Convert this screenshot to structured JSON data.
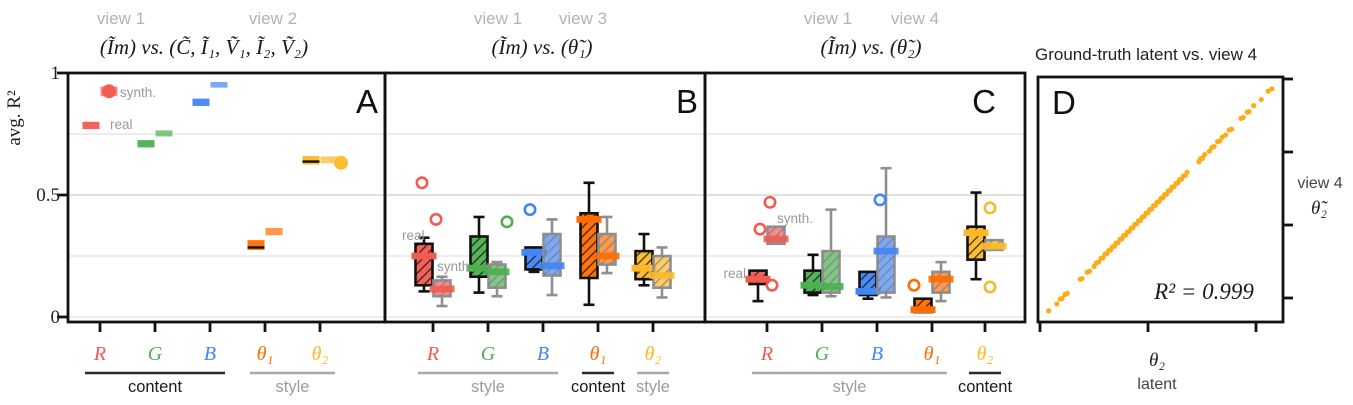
{
  "axis": {
    "label": "avg. R²",
    "ticks": [
      "1",
      "0.5",
      "0"
    ]
  },
  "chart_data": [
    {
      "type": "box",
      "panel": "A",
      "tag": "A",
      "view_tags": [
        "view 1",
        "view 2"
      ],
      "title": "(Ĩm) vs. (C̃, Ĩ₁, Ṽ₁, Ĩ₂, Ṽ₂)",
      "legend": {
        "real": "real",
        "synth": "synth."
      },
      "box_style": "plain",
      "ylim": [
        0,
        1
      ],
      "grid": [
        0,
        0.25,
        0.5,
        0.75
      ],
      "categories": [
        {
          "label": "R",
          "color": "#f15b52"
        },
        {
          "label": "G",
          "color": "#4caf50"
        },
        {
          "label": "B",
          "color": "#4285f4"
        },
        {
          "label": "θ₁",
          "color": "#ff6d00"
        },
        {
          "label": "θ₂",
          "color": "#fbb929"
        }
      ],
      "groups": [
        {
          "label": "content",
          "from": 0,
          "to": 2,
          "dark": true
        },
        {
          "label": "style",
          "from": 3,
          "to": 4,
          "dark": false
        }
      ],
      "boxes": [
        {
          "cat": 0,
          "kind": "real",
          "lo": 0.77,
          "q1": 0.77,
          "med": 0.785,
          "q3": 0.8,
          "hi": 0.8,
          "out": [],
          "fout": []
        },
        {
          "cat": 0,
          "kind": "synth",
          "lo": 0.905,
          "q1": 0.905,
          "med": 0.925,
          "q3": 0.945,
          "hi": 0.945,
          "out": [],
          "fout": [
            [
              0.925,
              0
            ]
          ]
        },
        {
          "cat": 1,
          "kind": "real",
          "lo": 0.69,
          "q1": 0.695,
          "med": 0.71,
          "q3": 0.725,
          "hi": 0.73,
          "out": [],
          "fout": []
        },
        {
          "cat": 1,
          "kind": "synth",
          "lo": 0.735,
          "q1": 0.74,
          "med": 0.752,
          "q3": 0.765,
          "hi": 0.77,
          "out": [],
          "fout": []
        },
        {
          "cat": 2,
          "kind": "real",
          "lo": 0.86,
          "q1": 0.865,
          "med": 0.878,
          "q3": 0.895,
          "hi": 0.9,
          "out": [],
          "fout": []
        },
        {
          "cat": 2,
          "kind": "synth",
          "lo": 0.935,
          "q1": 0.94,
          "med": 0.951,
          "q3": 0.963,
          "hi": 0.965,
          "out": [],
          "fout": []
        },
        {
          "cat": 3,
          "kind": "real",
          "lo": 0.27,
          "q1": 0.275,
          "med": 0.285,
          "q3": 0.315,
          "hi": 0.32,
          "out": [],
          "fout": [],
          "med_black": true
        },
        {
          "cat": 3,
          "kind": "synth",
          "lo": 0.33,
          "q1": 0.335,
          "med": 0.35,
          "q3": 0.365,
          "hi": 0.37,
          "out": [],
          "fout": []
        },
        {
          "cat": 4,
          "kind": "real",
          "lo": 0.62,
          "q1": 0.625,
          "med": 0.637,
          "q3": 0.66,
          "hi": 0.662,
          "out": [],
          "fout": [],
          "med_black": true
        },
        {
          "cat": 4,
          "kind": "synth",
          "lo": 0.625,
          "q1": 0.63,
          "med": 0.645,
          "q3": 0.658,
          "hi": 0.66,
          "out": [],
          "fout": [
            [
              0.632,
              12
            ]
          ]
        }
      ]
    },
    {
      "type": "box",
      "panel": "B",
      "tag": "B",
      "view_tags": [
        "view 1",
        "view 3"
      ],
      "title": "(Ĩm) vs. (θ̃₁)",
      "legend": {
        "real": "real",
        "synth": "synth."
      },
      "box_style": "hatched",
      "ylim": [
        0,
        1
      ],
      "grid": [
        0,
        0.25,
        0.5,
        0.75
      ],
      "categories": [
        {
          "label": "R",
          "color": "#f15b52"
        },
        {
          "label": "G",
          "color": "#4caf50"
        },
        {
          "label": "B",
          "color": "#4285f4"
        },
        {
          "label": "θ₁",
          "color": "#ff6d00"
        },
        {
          "label": "θ₂",
          "color": "#fbb929"
        }
      ],
      "groups": [
        {
          "label": "style",
          "from": 0,
          "to": 2,
          "dark": false
        },
        {
          "label": "content",
          "from": 3,
          "to": 3,
          "dark": true
        },
        {
          "label": "style",
          "from": 4,
          "to": 4,
          "dark": false
        }
      ],
      "boxes": [
        {
          "cat": 0,
          "kind": "real",
          "lo": 0.105,
          "q1": 0.13,
          "med": 0.25,
          "q3": 0.3,
          "hi": 0.325,
          "out": [
            [
              0.55,
              -2
            ],
            [
              0.4,
              12
            ]
          ],
          "fout": []
        },
        {
          "cat": 0,
          "kind": "synth",
          "lo": 0.045,
          "q1": 0.085,
          "med": 0.115,
          "q3": 0.15,
          "hi": 0.165,
          "out": [],
          "fout": []
        },
        {
          "cat": 1,
          "kind": "real",
          "lo": 0.1,
          "q1": 0.165,
          "med": 0.2,
          "q3": 0.33,
          "hi": 0.41,
          "out": [],
          "fout": []
        },
        {
          "cat": 1,
          "kind": "synth",
          "lo": 0.085,
          "q1": 0.12,
          "med": 0.185,
          "q3": 0.215,
          "hi": 0.225,
          "out": [
            [
              0.39,
              10
            ]
          ],
          "fout": []
        },
        {
          "cat": 2,
          "kind": "real",
          "lo": 0.185,
          "q1": 0.195,
          "med": 0.265,
          "q3": 0.285,
          "hi": 0.29,
          "out": [
            [
              0.44,
              -4
            ]
          ],
          "fout": []
        },
        {
          "cat": 2,
          "kind": "synth",
          "lo": 0.09,
          "q1": 0.17,
          "med": 0.21,
          "q3": 0.34,
          "hi": 0.4,
          "out": [],
          "fout": []
        },
        {
          "cat": 3,
          "kind": "real",
          "lo": 0.05,
          "q1": 0.16,
          "med": 0.4,
          "q3": 0.425,
          "hi": 0.55,
          "out": [],
          "fout": []
        },
        {
          "cat": 3,
          "kind": "synth",
          "lo": 0.18,
          "q1": 0.215,
          "med": 0.25,
          "q3": 0.34,
          "hi": 0.41,
          "out": [],
          "fout": []
        },
        {
          "cat": 4,
          "kind": "real",
          "lo": 0.13,
          "q1": 0.155,
          "med": 0.2,
          "q3": 0.27,
          "hi": 0.34,
          "out": [],
          "fout": []
        },
        {
          "cat": 4,
          "kind": "synth",
          "lo": 0.08,
          "q1": 0.12,
          "med": 0.17,
          "q3": 0.25,
          "hi": 0.285,
          "out": [],
          "fout": []
        }
      ]
    },
    {
      "type": "box",
      "panel": "C",
      "tag": "C",
      "view_tags": [
        "view 1",
        "view 4"
      ],
      "title": "(Ĩm) vs. (θ̃₂)",
      "legend": {
        "real": "real",
        "synth": "synth."
      },
      "box_style": "hatched",
      "ylim": [
        0,
        1
      ],
      "grid": [
        0,
        0.25,
        0.5,
        0.75
      ],
      "categories": [
        {
          "label": "R",
          "color": "#f15b52"
        },
        {
          "label": "G",
          "color": "#4caf50"
        },
        {
          "label": "B",
          "color": "#4285f4"
        },
        {
          "label": "θ₁",
          "color": "#ff6d00"
        },
        {
          "label": "θ₂",
          "color": "#fbb929"
        }
      ],
      "groups": [
        {
          "label": "style",
          "from": 0,
          "to": 3,
          "dark": false
        },
        {
          "label": "content",
          "from": 4,
          "to": 4,
          "dark": true
        }
      ],
      "boxes": [
        {
          "cat": 0,
          "kind": "real",
          "lo": 0.065,
          "q1": 0.135,
          "med": 0.155,
          "q3": 0.19,
          "hi": 0.195,
          "out": [
            [
              0.13,
              14
            ]
          ],
          "fout": []
        },
        {
          "cat": 0,
          "kind": "synth",
          "lo": 0.295,
          "q1": 0.3,
          "med": 0.32,
          "q3": 0.37,
          "hi": 0.375,
          "out": [
            [
              0.47,
              -6
            ],
            [
              0.36,
              -16
            ]
          ],
          "fout": []
        },
        {
          "cat": 1,
          "kind": "real",
          "lo": 0.09,
          "q1": 0.1,
          "med": 0.13,
          "q3": 0.19,
          "hi": 0.255,
          "out": [],
          "fout": []
        },
        {
          "cat": 1,
          "kind": "synth",
          "lo": 0.085,
          "q1": 0.1,
          "med": 0.125,
          "q3": 0.27,
          "hi": 0.44,
          "out": [],
          "fout": []
        },
        {
          "cat": 2,
          "kind": "real",
          "lo": 0.075,
          "q1": 0.09,
          "med": 0.105,
          "q3": 0.185,
          "hi": 0.19,
          "out": [],
          "fout": []
        },
        {
          "cat": 2,
          "kind": "synth",
          "lo": 0.08,
          "q1": 0.1,
          "med": 0.27,
          "q3": 0.33,
          "hi": 0.61,
          "out": [
            [
              0.48,
              -6
            ]
          ],
          "fout": []
        },
        {
          "cat": 3,
          "kind": "real",
          "lo": 0.015,
          "q1": 0.02,
          "med": 0.03,
          "q3": 0.075,
          "hi": 0.08,
          "out": [
            [
              0.13,
              -9
            ]
          ],
          "fout": []
        },
        {
          "cat": 3,
          "kind": "synth",
          "lo": 0.065,
          "q1": 0.1,
          "med": 0.155,
          "q3": 0.185,
          "hi": 0.225,
          "out": [],
          "fout": []
        },
        {
          "cat": 4,
          "kind": "real",
          "lo": 0.155,
          "q1": 0.235,
          "med": 0.345,
          "q3": 0.37,
          "hi": 0.51,
          "out": [
            [
              0.447,
              14
            ],
            [
              0.123,
              14
            ]
          ],
          "fout": []
        },
        {
          "cat": 4,
          "kind": "synth",
          "lo": 0.27,
          "q1": 0.275,
          "med": 0.29,
          "q3": 0.315,
          "hi": 0.315,
          "out": [],
          "fout": []
        }
      ]
    },
    {
      "type": "scatter",
      "panel": "D",
      "tag": "D",
      "title": "Ground-truth latent vs. view 4",
      "r2_label": "R² = 0.999",
      "point_color": "#fbac17",
      "xlabel_line1": "θ₂",
      "xlabel_line2": "latent",
      "ylabel_line1": "view 4",
      "ylabel_line2": "θ̃₂",
      "xlim": [
        0,
        1
      ],
      "ylim": [
        0,
        1
      ],
      "points": [
        [
          0.02,
          0.022
        ],
        [
          0.055,
          0.052
        ],
        [
          0.07,
          0.073
        ],
        [
          0.078,
          0.075
        ],
        [
          0.09,
          0.092
        ],
        [
          0.1,
          0.097
        ],
        [
          0.155,
          0.158
        ],
        [
          0.163,
          0.16
        ],
        [
          0.185,
          0.188
        ],
        [
          0.195,
          0.192
        ],
        [
          0.215,
          0.213
        ],
        [
          0.225,
          0.228
        ],
        [
          0.235,
          0.232
        ],
        [
          0.245,
          0.248
        ],
        [
          0.252,
          0.249
        ],
        [
          0.262,
          0.265
        ],
        [
          0.27,
          0.268
        ],
        [
          0.278,
          0.281
        ],
        [
          0.286,
          0.283
        ],
        [
          0.294,
          0.297
        ],
        [
          0.302,
          0.299
        ],
        [
          0.31,
          0.313
        ],
        [
          0.318,
          0.315
        ],
        [
          0.326,
          0.329
        ],
        [
          0.334,
          0.331
        ],
        [
          0.342,
          0.345
        ],
        [
          0.35,
          0.347
        ],
        [
          0.358,
          0.361
        ],
        [
          0.366,
          0.363
        ],
        [
          0.374,
          0.377
        ],
        [
          0.382,
          0.379
        ],
        [
          0.39,
          0.393
        ],
        [
          0.398,
          0.395
        ],
        [
          0.406,
          0.409
        ],
        [
          0.414,
          0.411
        ],
        [
          0.422,
          0.425
        ],
        [
          0.43,
          0.427
        ],
        [
          0.438,
          0.441
        ],
        [
          0.446,
          0.443
        ],
        [
          0.454,
          0.457
        ],
        [
          0.462,
          0.459
        ],
        [
          0.47,
          0.473
        ],
        [
          0.478,
          0.475
        ],
        [
          0.486,
          0.489
        ],
        [
          0.494,
          0.491
        ],
        [
          0.502,
          0.505
        ],
        [
          0.51,
          0.507
        ],
        [
          0.518,
          0.521
        ],
        [
          0.526,
          0.523
        ],
        [
          0.534,
          0.537
        ],
        [
          0.542,
          0.539
        ],
        [
          0.55,
          0.553
        ],
        [
          0.558,
          0.555
        ],
        [
          0.566,
          0.569
        ],
        [
          0.574,
          0.571
        ],
        [
          0.582,
          0.585
        ],
        [
          0.59,
          0.587
        ],
        [
          0.598,
          0.601
        ],
        [
          0.606,
          0.603
        ],
        [
          0.614,
          0.617
        ],
        [
          0.665,
          0.662
        ],
        [
          0.672,
          0.675
        ],
        [
          0.68,
          0.677
        ],
        [
          0.69,
          0.693
        ],
        [
          0.71,
          0.707
        ],
        [
          0.72,
          0.723
        ],
        [
          0.73,
          0.727
        ],
        [
          0.745,
          0.748
        ],
        [
          0.755,
          0.752
        ],
        [
          0.765,
          0.768
        ],
        [
          0.78,
          0.777
        ],
        [
          0.795,
          0.798
        ],
        [
          0.805,
          0.802
        ],
        [
          0.845,
          0.848
        ],
        [
          0.855,
          0.852
        ],
        [
          0.872,
          0.875
        ],
        [
          0.88,
          0.877
        ],
        [
          0.9,
          0.903
        ],
        [
          0.932,
          0.929
        ],
        [
          0.962,
          0.965
        ],
        [
          0.978,
          0.975
        ]
      ]
    }
  ]
}
